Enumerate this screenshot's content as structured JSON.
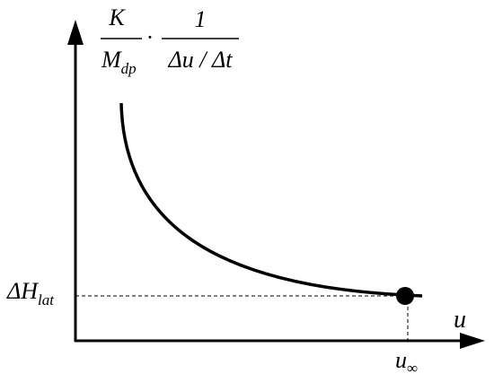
{
  "y_axis_label": {
    "numerator_left": "K",
    "denominator_left": "M",
    "denominator_left_subscript": "dp",
    "operator": "·",
    "numerator_right": "1",
    "denominator_right": "Δu / Δt"
  },
  "level_label": {
    "main": "ΔH",
    "subscript": "lat"
  },
  "x_axis_label": "u",
  "asymptote_label": {
    "main": "u",
    "subscript": "∞"
  }
}
